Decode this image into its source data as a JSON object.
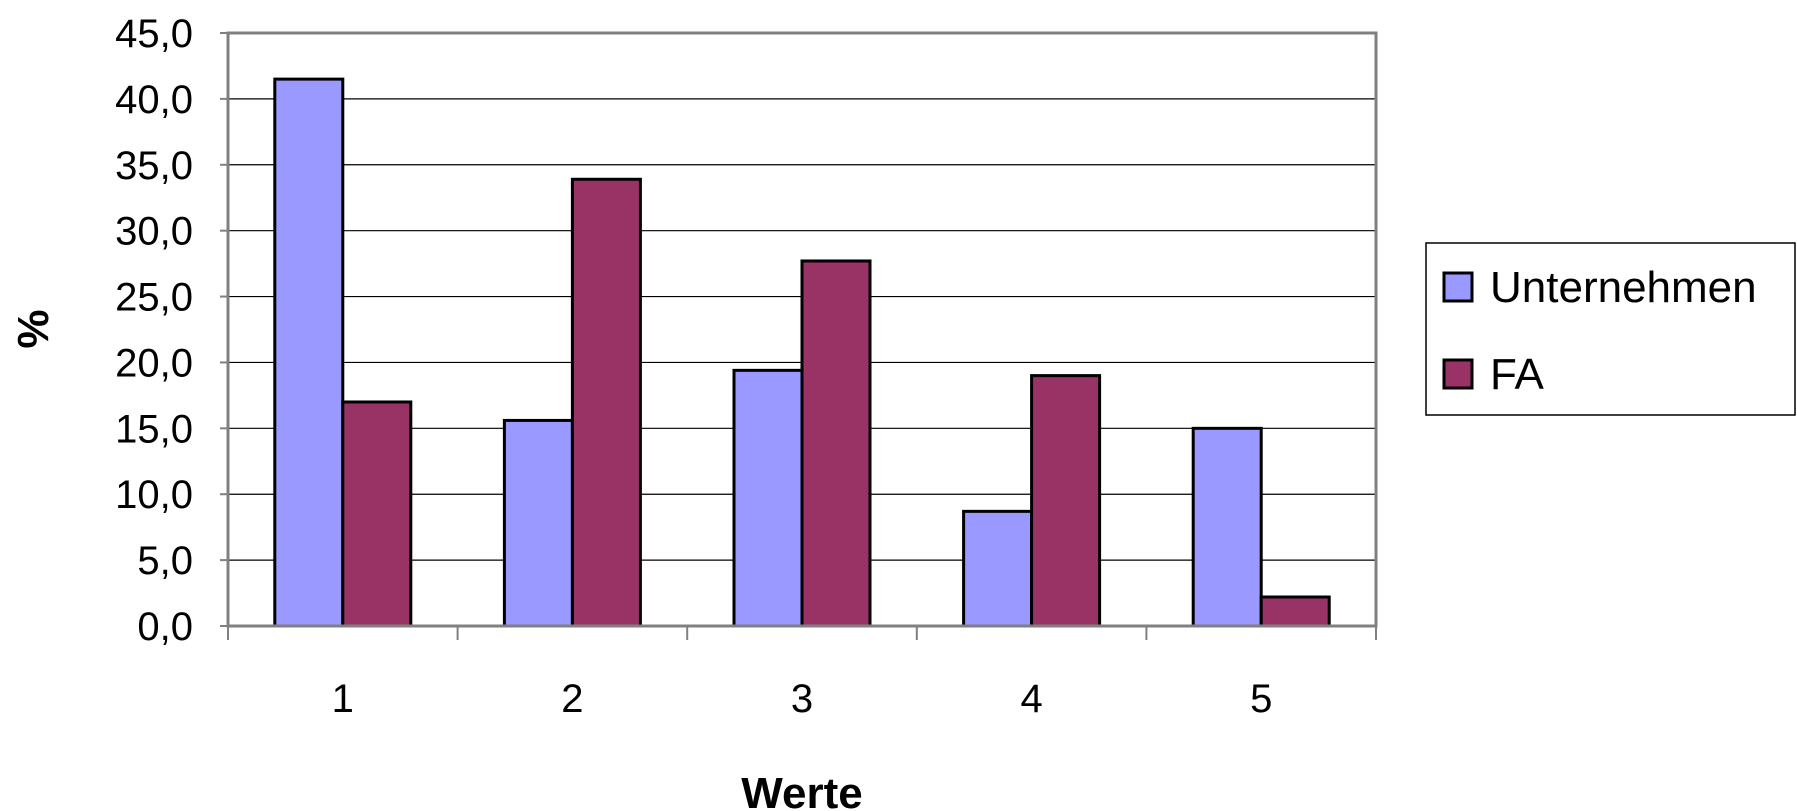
{
  "chart_data": {
    "type": "bar",
    "categories": [
      "1",
      "2",
      "3",
      "4",
      "5"
    ],
    "series": [
      {
        "name": "Unternehmen",
        "color": "#9999FF",
        "values": [
          41.5,
          15.6,
          19.4,
          8.7,
          15.0
        ]
      },
      {
        "name": "FA",
        "color": "#993366",
        "values": [
          17.0,
          33.9,
          27.7,
          19.0,
          2.2
        ]
      }
    ],
    "xlabel": "Werte",
    "ylabel": "%",
    "ylim": [
      0,
      45
    ],
    "yticks": [
      "0,0",
      "5,0",
      "10,0",
      "15,0",
      "20,0",
      "25,0",
      "30,0",
      "35,0",
      "40,0",
      "45,0"
    ],
    "grid": true,
    "legend": "right"
  }
}
